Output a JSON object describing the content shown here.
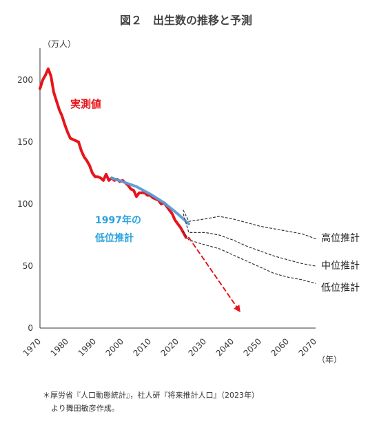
{
  "chart_data": {
    "type": "line",
    "title": "図２　出生数の推移と予測",
    "y_unit_label": "（万人）",
    "x_unit_label": "（年）",
    "xlim": [
      1970,
      2070
    ],
    "ylim": [
      0,
      220
    ],
    "x_ticks": [
      1970,
      1980,
      1990,
      2000,
      2010,
      2020,
      2030,
      2040,
      2050,
      2060,
      2070
    ],
    "y_ticks": [
      0,
      50,
      100,
      150,
      200
    ],
    "grid": false,
    "series": [
      {
        "name": "実測値",
        "color": "#e8141a",
        "style": "solid",
        "points": [
          [
            1970,
            193
          ],
          [
            1971,
            200
          ],
          [
            1972,
            204
          ],
          [
            1973,
            209
          ],
          [
            1974,
            203
          ],
          [
            1975,
            190
          ],
          [
            1976,
            183
          ],
          [
            1977,
            176
          ],
          [
            1978,
            171
          ],
          [
            1979,
            164
          ],
          [
            1980,
            158
          ],
          [
            1981,
            153
          ],
          [
            1982,
            152
          ],
          [
            1983,
            151
          ],
          [
            1984,
            150
          ],
          [
            1985,
            143
          ],
          [
            1986,
            138
          ],
          [
            1987,
            135
          ],
          [
            1988,
            131
          ],
          [
            1989,
            125
          ],
          [
            1990,
            122
          ],
          [
            1991,
            122
          ],
          [
            1992,
            121
          ],
          [
            1993,
            119
          ],
          [
            1994,
            124
          ],
          [
            1995,
            119
          ],
          [
            1996,
            121
          ],
          [
            1997,
            119
          ],
          [
            1998,
            120
          ],
          [
            1999,
            118
          ],
          [
            2000,
            119
          ],
          [
            2001,
            117
          ],
          [
            2002,
            115
          ],
          [
            2003,
            112
          ],
          [
            2004,
            111
          ],
          [
            2005,
            106
          ],
          [
            2006,
            109
          ],
          [
            2007,
            109
          ],
          [
            2008,
            109
          ],
          [
            2009,
            107
          ],
          [
            2010,
            107
          ],
          [
            2011,
            105
          ],
          [
            2012,
            104
          ],
          [
            2013,
            103
          ],
          [
            2014,
            100
          ],
          [
            2015,
            101
          ],
          [
            2016,
            98
          ],
          [
            2017,
            95
          ],
          [
            2018,
            92
          ],
          [
            2019,
            87
          ],
          [
            2020,
            84
          ],
          [
            2021,
            81
          ],
          [
            2022,
            77
          ],
          [
            2023,
            73
          ]
        ]
      },
      {
        "name": "1997年の低位推計",
        "color": "#5b9bd5",
        "style": "solid",
        "points": [
          [
            1996,
            121
          ],
          [
            2000,
            118
          ],
          [
            2005,
            114
          ],
          [
            2010,
            108
          ],
          [
            2015,
            101
          ],
          [
            2020,
            92
          ],
          [
            2024,
            84
          ]
        ]
      },
      {
        "name": "高位推計",
        "color": "#333333",
        "style": "dotted",
        "points": [
          [
            2022,
            95
          ],
          [
            2024,
            86
          ],
          [
            2030,
            88
          ],
          [
            2035,
            90
          ],
          [
            2040,
            88
          ],
          [
            2045,
            85
          ],
          [
            2050,
            82
          ],
          [
            2055,
            80
          ],
          [
            2060,
            78
          ],
          [
            2065,
            76
          ],
          [
            2070,
            72
          ]
        ]
      },
      {
        "name": "中位推計",
        "color": "#333333",
        "style": "dotted",
        "points": [
          [
            2022,
            92
          ],
          [
            2024,
            77
          ],
          [
            2030,
            77
          ],
          [
            2035,
            75
          ],
          [
            2040,
            71
          ],
          [
            2045,
            66
          ],
          [
            2050,
            62
          ],
          [
            2055,
            58
          ],
          [
            2060,
            55
          ],
          [
            2065,
            52
          ],
          [
            2070,
            50
          ]
        ]
      },
      {
        "name": "低位推計",
        "color": "#333333",
        "style": "dotted",
        "points": [
          [
            2022,
            78
          ],
          [
            2024,
            71
          ],
          [
            2030,
            67
          ],
          [
            2035,
            64
          ],
          [
            2040,
            59
          ],
          [
            2045,
            54
          ],
          [
            2050,
            49
          ],
          [
            2055,
            44
          ],
          [
            2060,
            41
          ],
          [
            2065,
            39
          ],
          [
            2070,
            36
          ]
        ]
      },
      {
        "name": "",
        "color": "#e8141a",
        "style": "dashed-arrow",
        "points": [
          [
            2024,
            73
          ],
          [
            2042,
            15
          ]
        ]
      }
    ],
    "annotations": {
      "actual": "実測値",
      "lowest_1997_line1": "1997年の",
      "lowest_1997_line2": "低位推計",
      "high": "高位推計",
      "mid": "中位推計",
      "low": "低位推計"
    }
  },
  "footnote": {
    "line1": "＊厚労省『人口動態統計』，社人研『将来推計人口』（2023年）",
    "line2": "より舞田敏彦作成。"
  }
}
